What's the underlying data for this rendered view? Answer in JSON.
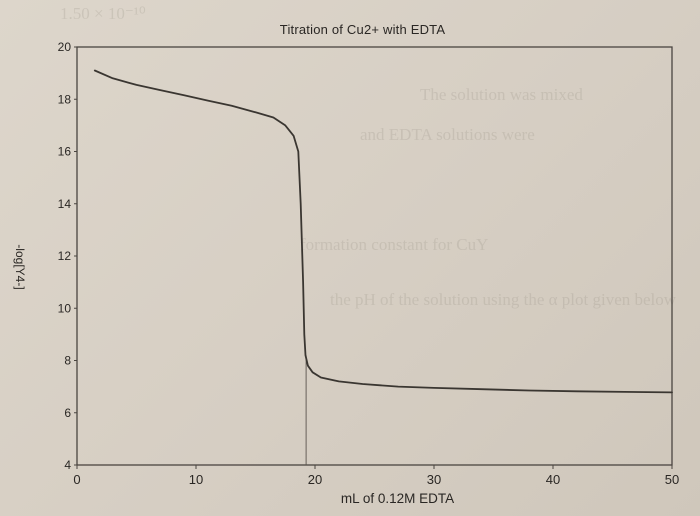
{
  "chart_data": {
    "type": "line",
    "title": "Titration of Cu2+ with EDTA",
    "xlabel": "mL of 0.12M EDTA",
    "ylabel": "-log[Y4-]",
    "xlim": [
      0,
      50
    ],
    "ylim": [
      4,
      20
    ],
    "xticks": [
      0,
      10,
      20,
      30,
      40,
      50
    ],
    "yticks": [
      4,
      6,
      8,
      10,
      12,
      14,
      16,
      18,
      20
    ],
    "grid": false,
    "legend": null,
    "annotations": [
      {
        "type": "vline",
        "x": 19,
        "description": "equivalence point marker from curve to x-axis"
      }
    ],
    "series": [
      {
        "name": "-log[Y4-]",
        "x": [
          1.5,
          3,
          5,
          7,
          9,
          11,
          13,
          15,
          16.5,
          17.5,
          18.2,
          18.6,
          18.8,
          19.0,
          19.1,
          19.2,
          19.4,
          19.8,
          20.5,
          22,
          24,
          27,
          30,
          34,
          38,
          42,
          46,
          50
        ],
        "values": [
          19.1,
          18.8,
          18.55,
          18.35,
          18.15,
          17.95,
          17.75,
          17.5,
          17.3,
          17.0,
          16.6,
          16.0,
          14.0,
          11.0,
          9.0,
          8.2,
          7.8,
          7.55,
          7.35,
          7.2,
          7.1,
          7.0,
          6.95,
          6.9,
          6.85,
          6.82,
          6.8,
          6.78
        ]
      }
    ]
  }
}
